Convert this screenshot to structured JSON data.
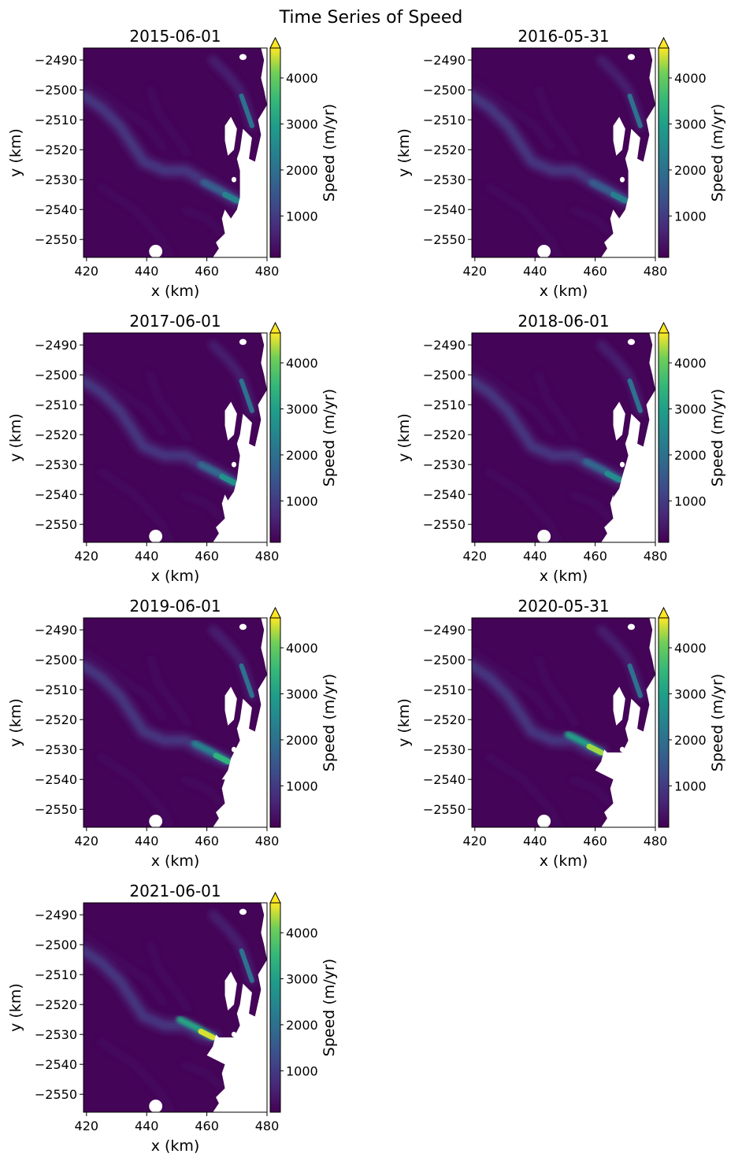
{
  "figure": {
    "suptitle": "Time Series of Speed"
  },
  "chart_data": {
    "type": "heatmap",
    "title": "Time Series of Speed",
    "colormap": "viridis",
    "mask_color": "#ffffff",
    "xlabel": "x (km)",
    "ylabel": "y (km)",
    "xlim": [
      419,
      480
    ],
    "ylim": [
      -2556,
      -2486
    ],
    "xticks": [
      420,
      440,
      460,
      480
    ],
    "yticks": [
      -2490,
      -2500,
      -2510,
      -2520,
      -2530,
      -2540,
      -2550
    ],
    "colorbar": {
      "label": "Speed (m/yr)",
      "range": [
        100,
        4650
      ],
      "ticks": [
        1000,
        2000,
        3000,
        4000
      ],
      "extend": "max"
    },
    "panels": [
      {
        "title": "2015-06-01",
        "front_x": 470,
        "front_y": -2537,
        "peak_speed": 2400
      },
      {
        "title": "2016-05-31",
        "front_x": 470,
        "front_y": -2537,
        "peak_speed": 2300
      },
      {
        "title": "2017-06-01",
        "front_x": 469,
        "front_y": -2536,
        "peak_speed": 2700
      },
      {
        "title": "2018-06-01",
        "front_x": 468,
        "front_y": -2535,
        "peak_speed": 2600
      },
      {
        "title": "2019-06-01",
        "front_x": 467,
        "front_y": -2534,
        "peak_speed": 3400
      },
      {
        "title": "2020-05-31",
        "front_x": 462,
        "front_y": -2531,
        "peak_speed": 4300
      },
      {
        "title": "2021-06-01",
        "front_x": 462,
        "front_y": -2531,
        "peak_speed": 4500
      }
    ]
  }
}
